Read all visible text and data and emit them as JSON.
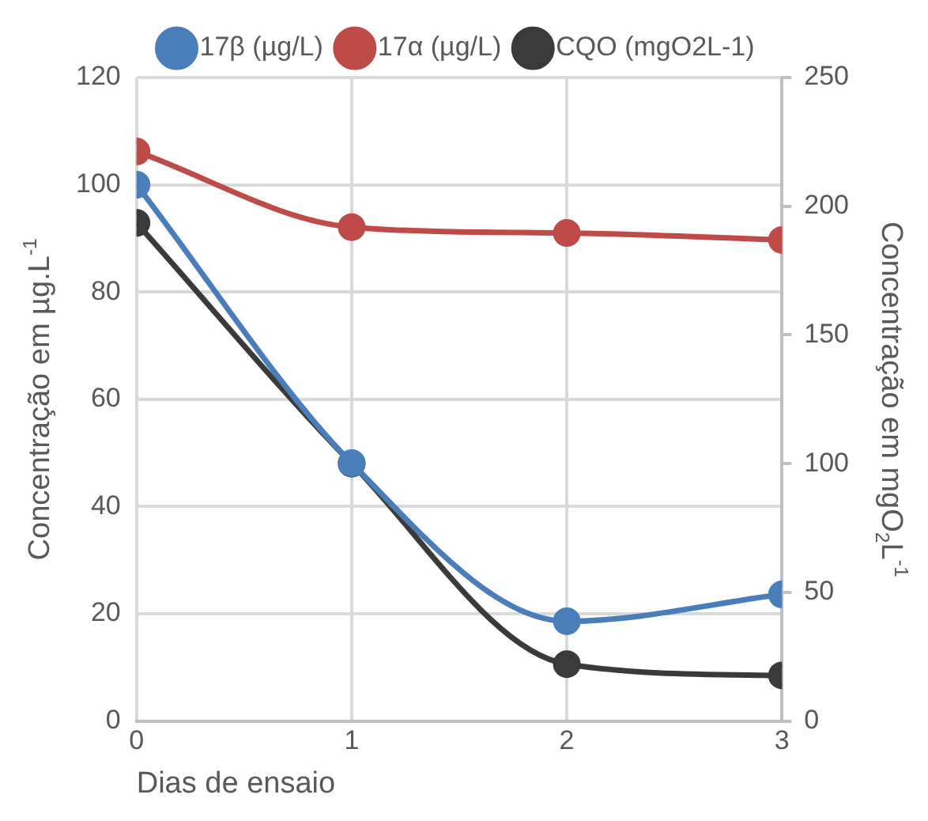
{
  "chart_data": {
    "type": "line",
    "x": [
      0,
      1,
      2,
      3
    ],
    "xlabel": "Dias de ensaio",
    "ylabel": "Concentração em µg.L$^{-1}$",
    "y2label": "Concentração em mgO$_{2}$L$^{-1}$",
    "series": [
      {
        "name": "17β (µg/L)",
        "color": "#4a7ebb",
        "values": [
          100,
          48.1,
          18.6,
          23.6
        ]
      },
      {
        "name": "17α (µg/L)",
        "color": "#be4b48",
        "values": [
          106.2,
          92.1,
          91,
          89.7
        ]
      },
      {
        "name": "CQO (mgO2L-1)",
        "color": "#3a3a3a",
        "values": [
          193.5,
          100,
          22.1,
          17.7
        ],
        "axis": "y2"
      }
    ],
    "xlim": [
      0,
      3
    ],
    "xticks": [
      0,
      1,
      2,
      3
    ],
    "ylim": [
      0,
      120
    ],
    "yticks": [
      0,
      20,
      40,
      60,
      80,
      100,
      120
    ],
    "y2lim": [
      0,
      250
    ],
    "y2ticks": [
      0,
      50,
      100,
      150,
      200,
      250
    ],
    "grid": true,
    "legend": "top",
    "marker": "circle",
    "line_style": "solid"
  }
}
